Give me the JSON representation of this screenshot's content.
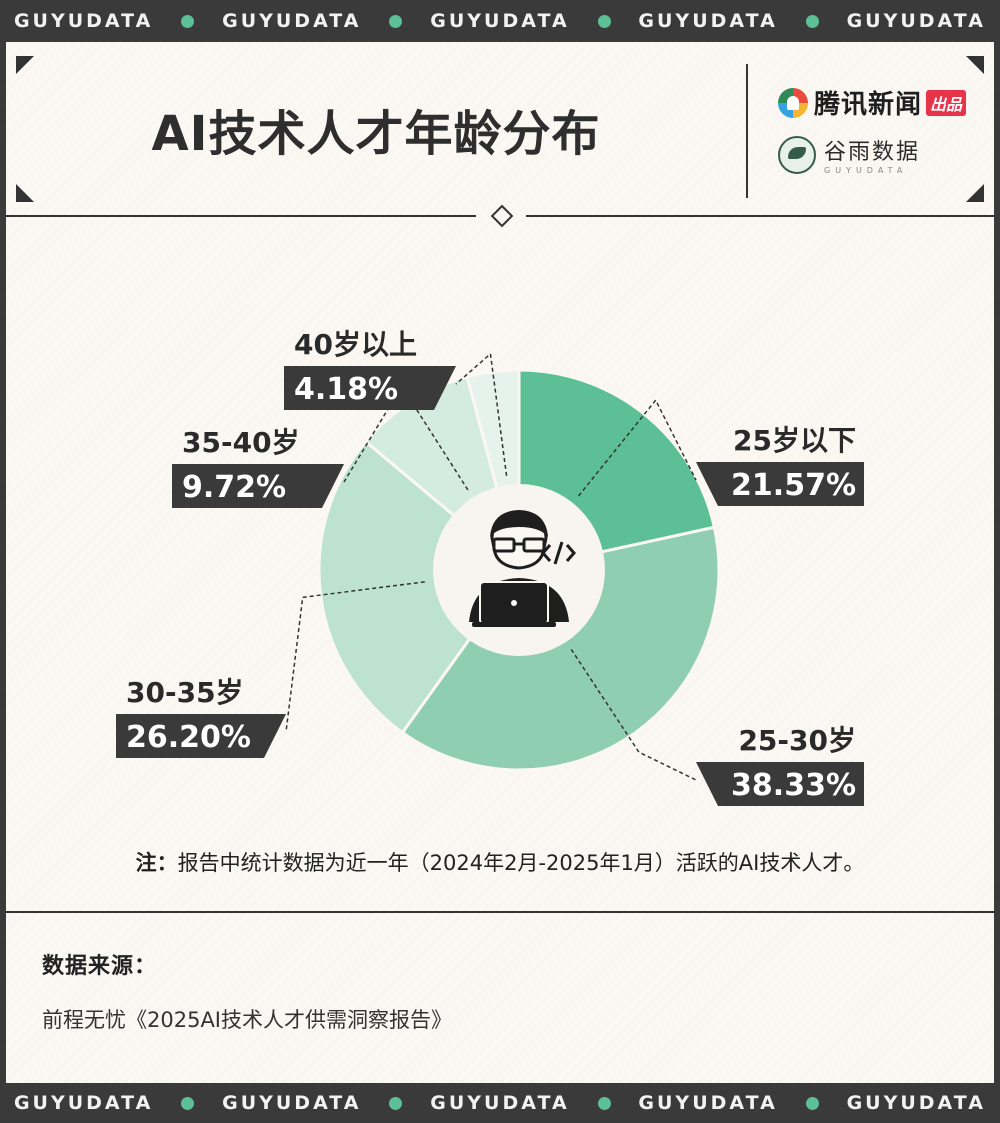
{
  "band": {
    "text": "GUYUDATA",
    "dot_color": "#5dbf95"
  },
  "header": {
    "title": "AI技术人才年龄分布",
    "logo_tencent": "腾讯新闻",
    "logo_tencent_tag": "出品",
    "logo_guyu_cn": "谷雨数据",
    "logo_guyu_en": "GUYUDATA"
  },
  "chart_data": {
    "type": "pie",
    "title": "AI技术人才年龄分布",
    "categories": [
      "25岁以下",
      "25-30岁",
      "30-35岁",
      "35-40岁",
      "40岁以上"
    ],
    "values": [
      21.57,
      38.33,
      26.2,
      9.72,
      4.18
    ],
    "value_labels": [
      "21.57%",
      "38.33%",
      "26.20%",
      "9.72%",
      "4.18%"
    ],
    "colors": [
      "#5dbf95",
      "#8fceb0",
      "#bde2cf",
      "#d4ebdf",
      "#e6f2ec"
    ],
    "donut": true
  },
  "note": {
    "prefix": "注：",
    "text": "报告中统计数据为近一年（2024年2月-2025年1月）活跃的AI技术人才。"
  },
  "source": {
    "label": "数据来源：",
    "text": "前程无忧《2025AI技术人才供需洞察报告》"
  }
}
